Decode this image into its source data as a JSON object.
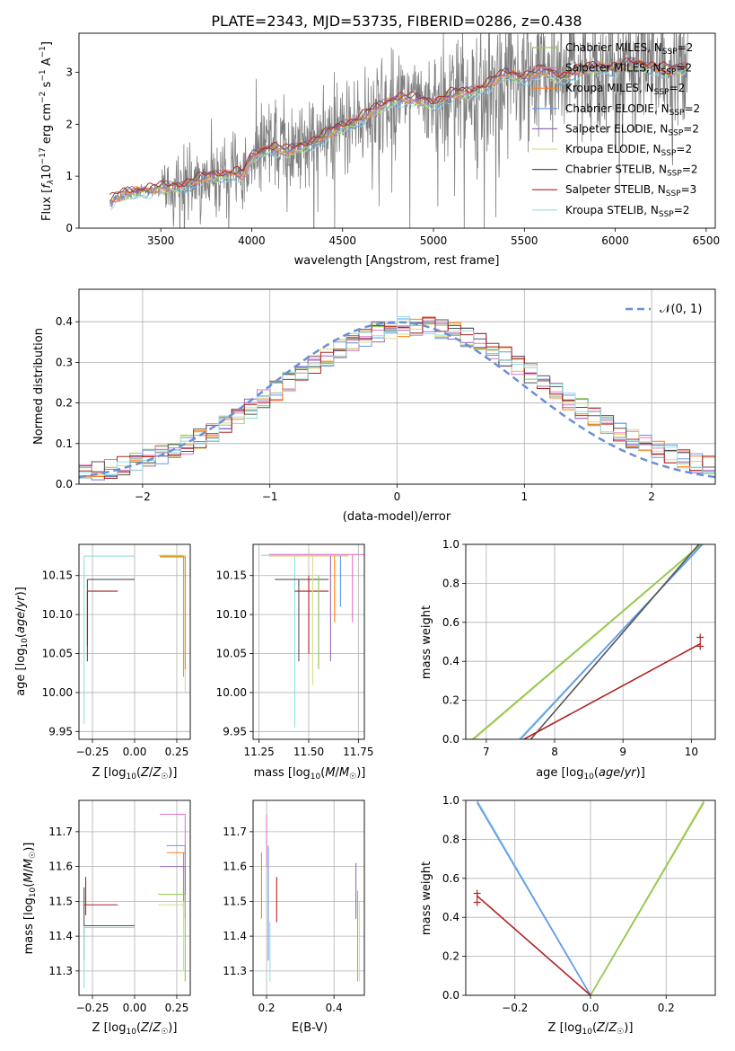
{
  "figure": {
    "title": "PLATE=2343, MJD=53735, FIBERID=0286, z=0.438"
  },
  "colors": {
    "data": "#808080",
    "chabrier_miles": "#8cc84b",
    "salpeter_miles": "#e377c2",
    "kroupa_miles": "#ff7f0e",
    "chabrier_elodie": "#6495ed",
    "salpeter_elodie": "#9467bd",
    "kroupa_elodie": "#dbdb8d",
    "chabrier_stelib": "#555555",
    "salpeter_stelib": "#b22222",
    "kroupa_stelib": "#8fdfe0",
    "gaussian": "#6a8fd8"
  },
  "chart_data": [
    {
      "id": "spectrum",
      "type": "line",
      "xlabel": "wavelength [Angstrom, rest frame]",
      "ylabel": "Flux [f_λ 10^-17 erg cm^-2 s^-1 A^-1]",
      "xlim": [
        3050,
        6550
      ],
      "ylim": [
        0,
        3.75
      ],
      "xticks": [
        3500,
        4000,
        4500,
        5000,
        5500,
        6000,
        6500
      ],
      "yticks": [
        0,
        1,
        2,
        3
      ],
      "grid": false,
      "legend_position": "top-right",
      "legend": [
        {
          "label": "Chabrier MILES, N",
          "sub": "SSP",
          "tail": "=2",
          "color_key": "chabrier_miles"
        },
        {
          "label": "Salpeter MILES, N",
          "sub": "SSP",
          "tail": "=2",
          "color_key": "salpeter_miles"
        },
        {
          "label": "Kroupa MILES, N",
          "sub": "SSP",
          "tail": "=2",
          "color_key": "kroupa_miles"
        },
        {
          "label": "Chabrier ELODIE, N",
          "sub": "SSP",
          "tail": "=2",
          "color_key": "chabrier_elodie"
        },
        {
          "label": "Salpeter ELODIE, N",
          "sub": "SSP",
          "tail": "=2",
          "color_key": "salpeter_elodie"
        },
        {
          "label": "Kroupa ELODIE, N",
          "sub": "SSP",
          "tail": "=2",
          "color_key": "kroupa_elodie"
        },
        {
          "label": "Chabrier STELIB, N",
          "sub": "SSP",
          "tail": "=2",
          "color_key": "chabrier_stelib"
        },
        {
          "label": "Salpeter STELIB, N",
          "sub": "SSP",
          "tail": "=3",
          "color_key": "salpeter_stelib"
        },
        {
          "label": "Kroupa STELIB, N",
          "sub": "SSP",
          "tail": "=2",
          "color_key": "kroupa_stelib"
        }
      ],
      "model_curve": {
        "x": [
          3220,
          3300,
          3400,
          3500,
          3600,
          3700,
          3800,
          3900,
          3950,
          4000,
          4100,
          4200,
          4300,
          4400,
          4500,
          4600,
          4700,
          4800,
          4900,
          5000,
          5100,
          5200,
          5300,
          5400,
          5500,
          5600,
          5700,
          5800,
          5900,
          6000,
          6100,
          6200,
          6300,
          6400
        ],
        "y": [
          0.5,
          0.65,
          0.72,
          0.75,
          0.8,
          0.9,
          1.0,
          1.05,
          1.0,
          1.35,
          1.55,
          1.45,
          1.6,
          1.75,
          1.95,
          2.1,
          2.3,
          2.5,
          2.45,
          2.4,
          2.55,
          2.6,
          2.75,
          2.95,
          2.9,
          3.0,
          2.9,
          3.0,
          3.1,
          3.05,
          3.15,
          3.1,
          3.0,
          3.1
        ]
      },
      "data_range": [
        3220,
        6400
      ]
    },
    {
      "id": "residuals",
      "type": "line",
      "xlabel": "(data-model)/error",
      "ylabel": "Normed distribution",
      "xlim": [
        -2.5,
        2.5
      ],
      "ylim": [
        0,
        0.48
      ],
      "xticks": [
        -2,
        -1,
        0,
        1,
        2
      ],
      "yticks": [
        0.0,
        0.1,
        0.2,
        0.3,
        0.4
      ],
      "grid": true,
      "legend_position": "top-right",
      "legend": [
        {
          "label": "𝒩(0, 1)",
          "color_key": "gaussian",
          "style": "dashed"
        }
      ],
      "bin_width": 0.1,
      "bin_start": -2.5
    },
    {
      "id": "age_vs_Z",
      "type": "scatter",
      "xlabel": "Z [log10(Z/Z☉)]",
      "ylabel": "age [log10(age/yr)]",
      "xlim": [
        -0.33,
        0.33
      ],
      "ylim": [
        9.94,
        10.19
      ],
      "xticks": [
        -0.25,
        0.0,
        0.25
      ],
      "xticklabels": [
        "−0.25",
        "0.00",
        "0.25"
      ],
      "yticks": [
        9.95,
        10.0,
        10.05,
        10.1,
        10.15
      ],
      "grid": true
    },
    {
      "id": "age_vs_mass",
      "type": "scatter",
      "xlabel": "mass [log10(M/M☉)]",
      "ylabel": "",
      "xlim": [
        11.22,
        11.78
      ],
      "ylim": [
        9.94,
        10.19
      ],
      "xticks": [
        11.25,
        11.5,
        11.75
      ],
      "yticks": [
        9.95,
        10.0,
        10.05,
        10.1,
        10.15
      ],
      "grid": true
    },
    {
      "id": "massweight_vs_age",
      "type": "line",
      "xlabel": "age [log10(age/yr)]",
      "ylabel": "mass weight",
      "xlim": [
        6.7,
        10.35
      ],
      "ylim": [
        0,
        1.0
      ],
      "xticks": [
        7,
        8,
        9,
        10
      ],
      "yticks": [
        0.0,
        0.2,
        0.4,
        0.6,
        0.8,
        1.0
      ],
      "grid": true,
      "series": [
        {
          "color_key": "kroupa_elodie",
          "x": [
            6.82,
            10.15
          ],
          "y": [
            0.0,
            1.0
          ]
        },
        {
          "color_key": "chabrier_miles",
          "x": [
            6.8,
            10.14
          ],
          "y": [
            0.0,
            1.0
          ]
        },
        {
          "color_key": "kroupa_stelib",
          "x": [
            7.48,
            10.17
          ],
          "y": [
            0.0,
            1.0
          ]
        },
        {
          "color_key": "chabrier_elodie",
          "x": [
            7.5,
            10.16
          ],
          "y": [
            0.0,
            1.0
          ]
        },
        {
          "color_key": "chabrier_stelib",
          "x": [
            7.65,
            10.11
          ],
          "y": [
            0.0,
            1.0
          ]
        },
        {
          "color_key": "salpeter_stelib",
          "x": [
            7.55,
            10.13
          ],
          "y": [
            0.0,
            0.49
          ]
        }
      ],
      "points": [
        {
          "color_key": "salpeter_stelib",
          "x": 10.13,
          "y": 0.5
        }
      ]
    },
    {
      "id": "mass_vs_Z",
      "type": "scatter",
      "xlabel": "Z [log10(Z/Z☉)]",
      "ylabel": "mass [log10(M/M☉)]",
      "xlim": [
        -0.33,
        0.33
      ],
      "ylim": [
        11.23,
        11.79
      ],
      "xticks": [
        -0.25,
        0.0,
        0.25
      ],
      "xticklabels": [
        "−0.25",
        "0.00",
        "0.25"
      ],
      "yticks": [
        11.3,
        11.4,
        11.5,
        11.6,
        11.7
      ],
      "grid": true
    },
    {
      "id": "mass_vs_ebv",
      "type": "scatter",
      "xlabel": "E(B-V)",
      "ylabel": "",
      "xlim": [
        0.16,
        0.49
      ],
      "ylim": [
        11.23,
        11.79
      ],
      "xticks": [
        0.2,
        0.4
      ],
      "yticks": [
        11.3,
        11.4,
        11.5,
        11.6,
        11.7
      ],
      "grid": true
    },
    {
      "id": "massweight_vs_Z",
      "type": "line",
      "xlabel": "Z [log10(Z/Z☉)]",
      "ylabel": "mass weight",
      "xlim": [
        -0.33,
        0.33
      ],
      "ylim": [
        0,
        1.0
      ],
      "xticks": [
        -0.2,
        0.0,
        0.2
      ],
      "xticklabels": [
        "−0.2",
        "0.0",
        "0.2"
      ],
      "yticks": [
        0.0,
        0.2,
        0.4,
        0.6,
        0.8,
        1.0
      ],
      "grid": true,
      "series": [
        {
          "color_key": "kroupa_stelib",
          "x": [
            -0.3,
            0.0
          ],
          "y": [
            1.0,
            0.0
          ]
        },
        {
          "color_key": "chabrier_elodie",
          "x": [
            -0.3,
            0.0
          ],
          "y": [
            0.99,
            0.0
          ]
        },
        {
          "color_key": "kroupa_elodie",
          "x": [
            0.0,
            0.3
          ],
          "y": [
            0.0,
            1.0
          ]
        },
        {
          "color_key": "chabrier_miles",
          "x": [
            0.0,
            0.3
          ],
          "y": [
            0.0,
            0.99
          ]
        },
        {
          "color_key": "salpeter_stelib",
          "x": [
            -0.3,
            0.0
          ],
          "y": [
            0.51,
            0.0
          ]
        }
      ],
      "points": [
        {
          "color_key": "salpeter_stelib",
          "x": -0.3,
          "y": 0.5
        }
      ]
    }
  ]
}
